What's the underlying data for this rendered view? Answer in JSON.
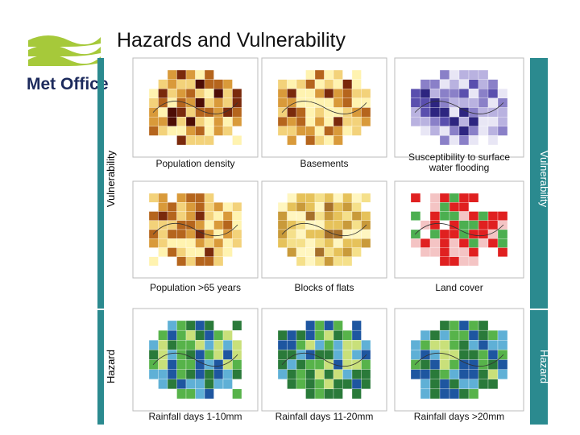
{
  "header": {
    "title": "Hazards and Vulnerability",
    "logo": "Met Office"
  },
  "side_labels": {
    "left_top": "Vulnerability",
    "right_top": "Vulnerability",
    "left_bottom": "Hazard",
    "right_bottom": "Hazard"
  },
  "panels": [
    {
      "caption": "Population density"
    },
    {
      "caption": "Basements"
    },
    {
      "caption": "Susceptibility to surface water flooding"
    },
    {
      "caption": "Population >65 years"
    },
    {
      "caption": "Blocks of flats"
    },
    {
      "caption": "Land cover"
    },
    {
      "caption": "Rainfall days 1-10mm"
    },
    {
      "caption": "Rainfall days 11-20mm"
    },
    {
      "caption": "Rainfall days >20mm"
    }
  ]
}
